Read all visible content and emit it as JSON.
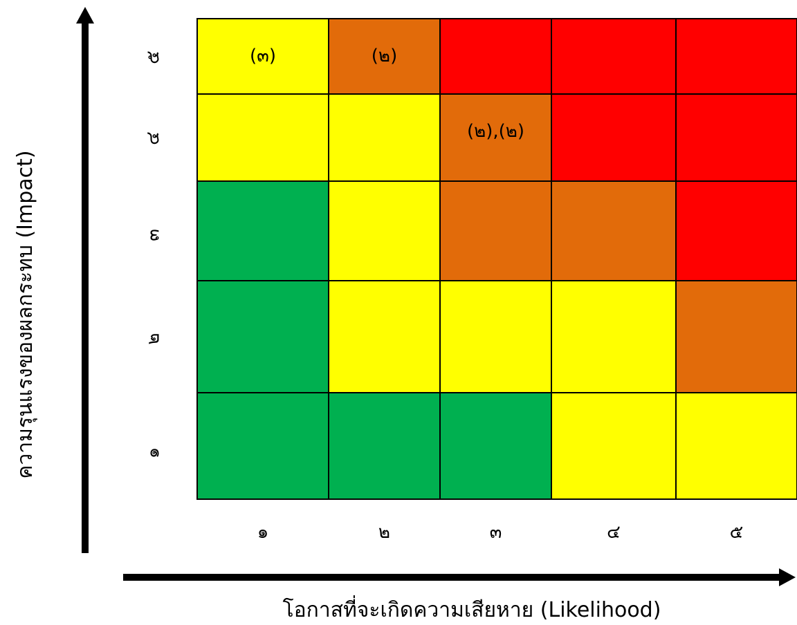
{
  "chart_data": {
    "type": "heatmap",
    "xlabel": "โอกาสที่จะเกิดความเสียหาย (Likelihood)",
    "ylabel": "ความรุนแรงของผลกระทบ (Impact)",
    "x_ticks": [
      "๑",
      "๒",
      "๓",
      "๔",
      "๕"
    ],
    "y_ticks": [
      "๑",
      "๒",
      "๓",
      "๔",
      "๕"
    ],
    "colors": {
      "green": "#00b050",
      "yellow": "#ffff00",
      "orange": "#e26b0a",
      "red": "#ff0000"
    },
    "cells": [
      {
        "likelihood": 1,
        "impact": 5,
        "level": "yellow",
        "label": "(๓)"
      },
      {
        "likelihood": 2,
        "impact": 5,
        "level": "orange",
        "label": "(๒)"
      },
      {
        "likelihood": 3,
        "impact": 5,
        "level": "red",
        "label": ""
      },
      {
        "likelihood": 4,
        "impact": 5,
        "level": "red",
        "label": ""
      },
      {
        "likelihood": 5,
        "impact": 5,
        "level": "red",
        "label": ""
      },
      {
        "likelihood": 1,
        "impact": 4,
        "level": "yellow",
        "label": ""
      },
      {
        "likelihood": 2,
        "impact": 4,
        "level": "yellow",
        "label": ""
      },
      {
        "likelihood": 3,
        "impact": 4,
        "level": "orange",
        "label": "(๒),(๒)"
      },
      {
        "likelihood": 4,
        "impact": 4,
        "level": "red",
        "label": ""
      },
      {
        "likelihood": 5,
        "impact": 4,
        "level": "red",
        "label": ""
      },
      {
        "likelihood": 1,
        "impact": 3,
        "level": "green",
        "label": ""
      },
      {
        "likelihood": 2,
        "impact": 3,
        "level": "yellow",
        "label": ""
      },
      {
        "likelihood": 3,
        "impact": 3,
        "level": "orange",
        "label": ""
      },
      {
        "likelihood": 4,
        "impact": 3,
        "level": "orange",
        "label": ""
      },
      {
        "likelihood": 5,
        "impact": 3,
        "level": "red",
        "label": ""
      },
      {
        "likelihood": 1,
        "impact": 2,
        "level": "green",
        "label": ""
      },
      {
        "likelihood": 2,
        "impact": 2,
        "level": "yellow",
        "label": ""
      },
      {
        "likelihood": 3,
        "impact": 2,
        "level": "yellow",
        "label": ""
      },
      {
        "likelihood": 4,
        "impact": 2,
        "level": "yellow",
        "label": ""
      },
      {
        "likelihood": 5,
        "impact": 2,
        "level": "orange",
        "label": ""
      },
      {
        "likelihood": 1,
        "impact": 1,
        "level": "green",
        "label": ""
      },
      {
        "likelihood": 2,
        "impact": 1,
        "level": "green",
        "label": ""
      },
      {
        "likelihood": 3,
        "impact": 1,
        "level": "green",
        "label": ""
      },
      {
        "likelihood": 4,
        "impact": 1,
        "level": "yellow",
        "label": ""
      },
      {
        "likelihood": 5,
        "impact": 1,
        "level": "yellow",
        "label": ""
      }
    ]
  }
}
